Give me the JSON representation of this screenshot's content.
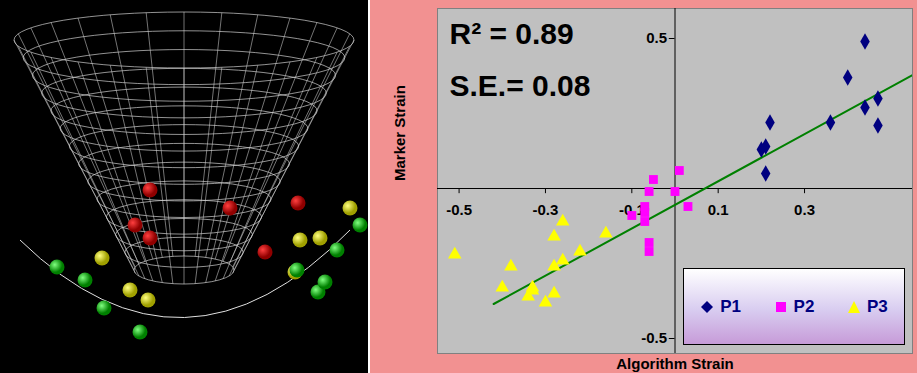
{
  "chart_data": {
    "type": "scatter",
    "x_label": "Algorithm Strain",
    "y_label": "Marker Strain",
    "annotations": [
      "R² = 0.89",
      "S.E.= 0.08"
    ],
    "xlim": [
      -0.55,
      0.55
    ],
    "xticks": [
      -0.5,
      -0.3,
      -0.1,
      0.1,
      0.3
    ],
    "ylim": [
      -0.55,
      0.6
    ],
    "yticks": [
      -0.5,
      0.5
    ],
    "grid": false,
    "legend": "lower right",
    "series": [
      {
        "name": "P1",
        "color": "#000080",
        "marker": "diamond",
        "x": [
          0.44,
          0.4,
          0.44,
          0.47,
          0.22,
          0.36,
          0.47,
          0.2,
          0.21,
          0.21
        ],
        "values": [
          0.49,
          0.37,
          0.27,
          0.3,
          0.22,
          0.22,
          0.21,
          0.13,
          0.14,
          0.05
        ]
      },
      {
        "name": "P2",
        "color": "#ff00ff",
        "marker": "square",
        "x": [
          0.01,
          -0.05,
          -0.06,
          0.0,
          0.03,
          -0.07,
          -0.07,
          -0.1,
          -0.07,
          -0.06,
          -0.06
        ],
        "values": [
          0.06,
          0.03,
          -0.01,
          -0.01,
          -0.06,
          -0.06,
          -0.08,
          -0.09,
          -0.11,
          -0.18,
          -0.21
        ]
      },
      {
        "name": "P3",
        "color": "#ffff00",
        "marker": "triangle",
        "x": [
          -0.51,
          -0.26,
          -0.28,
          -0.16,
          -0.22,
          -0.26,
          -0.28,
          -0.38,
          -0.28,
          -0.4,
          -0.33,
          -0.34,
          -0.33,
          -0.3
        ],
        "values": [
          -0.22,
          -0.11,
          -0.16,
          -0.15,
          -0.21,
          -0.24,
          -0.26,
          -0.26,
          -0.35,
          -0.33,
          -0.34,
          -0.36,
          -0.33,
          -0.38
        ]
      }
    ],
    "trendline": {
      "color": "#008000",
      "x": [
        -0.42,
        0.55
      ],
      "values": [
        -0.385,
        0.378
      ]
    }
  }
}
